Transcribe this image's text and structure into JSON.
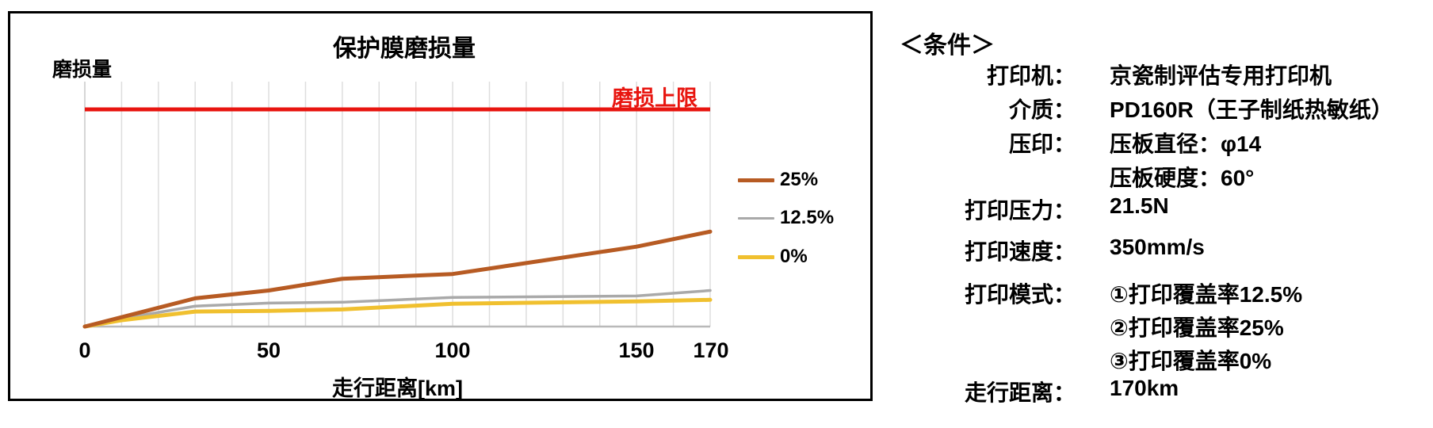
{
  "page": {
    "background": "#ffffff",
    "panel_border": "#000000"
  },
  "chart_data": {
    "type": "line",
    "title": "保护膜磨损量",
    "ylabel": "磨损量",
    "xlabel": "走行距离[km]",
    "x_ticks": [
      "0",
      "50",
      "100",
      "150",
      "170"
    ],
    "x_tick_values": [
      0,
      50,
      100,
      150,
      170
    ],
    "xlim": [
      0,
      170
    ],
    "grid": true,
    "grid_step_km": 10,
    "legend_position": "right-outside",
    "y_axis_note": "y axis has no numeric labels; series values are relative units where the wear upper limit line = 100",
    "limit_line": {
      "label": "磨损上限",
      "value": 100,
      "color": "#e8150f"
    },
    "series": [
      {
        "name": "25%",
        "color": "#b75b23",
        "stroke_width": 5,
        "x": [
          0,
          10,
          30,
          50,
          70,
          100,
          150,
          170
        ],
        "y": [
          0,
          4.3,
          13.0,
          16.6,
          22.0,
          24.2,
          36.8,
          43.7
        ]
      },
      {
        "name": "12.5%",
        "color": "#a9a9a9",
        "stroke_width": 3.5,
        "x": [
          0,
          10,
          30,
          50,
          70,
          100,
          150,
          170
        ],
        "y": [
          0,
          3.6,
          9.4,
          10.8,
          11.2,
          13.4,
          14.1,
          16.6
        ]
      },
      {
        "name": "0%",
        "color": "#f0c02f",
        "stroke_width": 5,
        "x": [
          0,
          10,
          30,
          50,
          70,
          100,
          150,
          170
        ],
        "y": [
          0,
          2.9,
          6.9,
          7.2,
          7.9,
          10.5,
          11.6,
          12.3
        ]
      }
    ],
    "axis_colors": {
      "gridline": "#dddddd",
      "baseline": "#b9b9b9"
    }
  },
  "conditions": {
    "heading": "＜条件＞",
    "rows": [
      {
        "label": "打印机：",
        "value": "京瓷制评估专用打印机"
      },
      {
        "label": "介质：",
        "value": "PD160R（王子制纸热敏纸）"
      },
      {
        "label": "压印：",
        "value": "压板直径：φ14"
      },
      {
        "label": "",
        "value": "压板硬度：60°"
      },
      {
        "label": "打印压力：",
        "value": "21.5N"
      },
      {
        "label": "打印速度：",
        "value": "350mm/s"
      },
      {
        "label": "打印模式：",
        "value": "①打印覆盖率12.5%"
      },
      {
        "label": "",
        "value": "②打印覆盖率25%"
      },
      {
        "label": "",
        "value": "③打印覆盖率0%"
      },
      {
        "label": "走行距离：",
        "value": "170km"
      }
    ]
  }
}
